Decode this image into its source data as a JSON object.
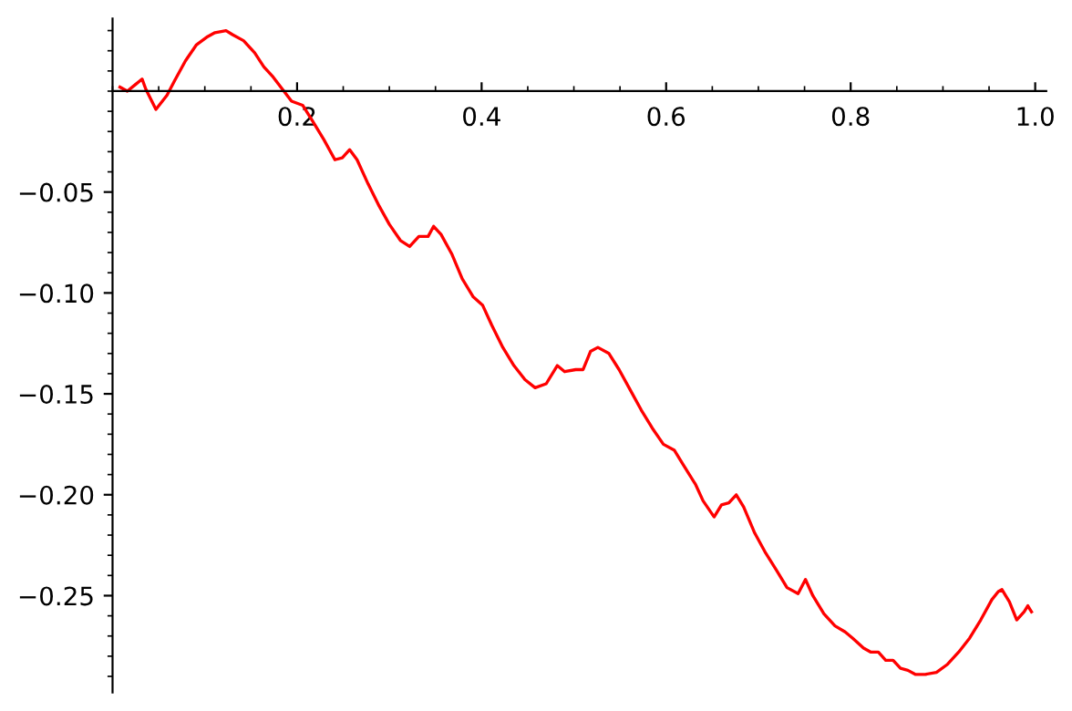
{
  "chart_data": {
    "type": "line",
    "x": [
      0.008,
      0.016,
      0.024,
      0.032,
      0.036,
      0.047,
      0.059,
      0.067,
      0.079,
      0.091,
      0.103,
      0.111,
      0.123,
      0.13,
      0.142,
      0.154,
      0.164,
      0.174,
      0.184,
      0.194,
      0.206,
      0.217,
      0.229,
      0.241,
      0.249,
      0.257,
      0.265,
      0.277,
      0.289,
      0.3,
      0.312,
      0.322,
      0.332,
      0.342,
      0.348,
      0.356,
      0.368,
      0.379,
      0.391,
      0.401,
      0.411,
      0.423,
      0.435,
      0.447,
      0.458,
      0.47,
      0.482,
      0.49,
      0.502,
      0.51,
      0.518,
      0.526,
      0.538,
      0.549,
      0.561,
      0.573,
      0.585,
      0.597,
      0.609,
      0.621,
      0.632,
      0.64,
      0.652,
      0.66,
      0.668,
      0.676,
      0.684,
      0.696,
      0.708,
      0.719,
      0.731,
      0.743,
      0.751,
      0.759,
      0.771,
      0.783,
      0.794,
      0.802,
      0.814,
      0.822,
      0.83,
      0.838,
      0.846,
      0.854,
      0.862,
      0.87,
      0.881,
      0.893,
      0.905,
      0.917,
      0.929,
      0.941,
      0.953,
      0.96,
      0.964,
      0.972,
      0.98,
      0.988,
      0.992,
      0.996
    ],
    "series": [
      {
        "color": "#ff0000",
        "values": [
          0.002,
          0,
          0.003,
          0.006,
          0.001,
          -0.009,
          -0.002,
          0.005,
          0.015,
          0.023,
          0.027,
          0.029,
          0.03,
          0.028,
          0.025,
          0.019,
          0.012,
          0.007,
          0.001,
          -0.005,
          -0.007,
          -0.015,
          -0.024,
          -0.034,
          -0.033,
          -0.029,
          -0.034,
          -0.046,
          -0.057,
          -0.066,
          -0.074,
          -0.077,
          -0.072,
          -0.072,
          -0.067,
          -0.071,
          -0.081,
          -0.093,
          -0.102,
          -0.106,
          -0.116,
          -0.127,
          -0.136,
          -0.143,
          -0.147,
          -0.145,
          -0.136,
          -0.139,
          -0.138,
          -0.138,
          -0.129,
          -0.127,
          -0.13,
          -0.138,
          -0.148,
          -0.158,
          -0.167,
          -0.175,
          -0.178,
          -0.187,
          -0.195,
          -0.203,
          -0.211,
          -0.205,
          -0.204,
          -0.2,
          -0.206,
          -0.219,
          -0.229,
          -0.237,
          -0.246,
          -0.249,
          -0.242,
          -0.25,
          -0.259,
          -0.265,
          -0.268,
          -0.271,
          -0.276,
          -0.278,
          -0.278,
          -0.282,
          -0.282,
          -0.286,
          -0.287,
          -0.289,
          -0.289,
          -0.288,
          -0.284,
          -0.278,
          -0.271,
          -0.262,
          -0.252,
          -0.248,
          -0.247,
          -0.253,
          -0.262,
          -0.258,
          -0.255,
          -0.258
        ]
      }
    ],
    "xlim": [
      0,
      1.012
    ],
    "ylim": [
      -0.298,
      0.036
    ],
    "xticks": [
      0.2,
      0.4,
      0.6,
      0.8,
      {
        "value": 1.0,
        "label": "1.0"
      }
    ],
    "yticks": [
      {
        "value": -0.05,
        "label": "−0.05"
      },
      {
        "value": -0.1,
        "label": "−0.10"
      },
      {
        "value": -0.15,
        "label": "−0.15"
      },
      {
        "value": -0.2,
        "label": "−0.20"
      },
      {
        "value": -0.25,
        "label": "−0.25"
      }
    ],
    "line_style": "solid",
    "marker": "none",
    "grid": false,
    "legend": false
  }
}
